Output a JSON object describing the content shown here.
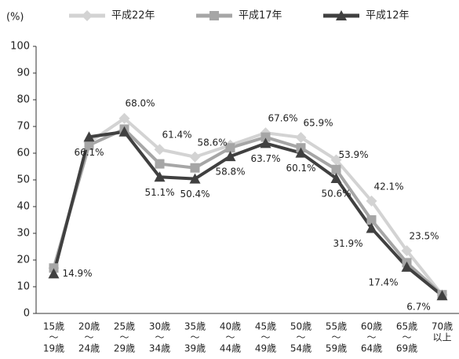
{
  "chart_data": {
    "type": "line",
    "y_label": "(%)",
    "categories": [
      [
        "15歳",
        "～",
        "19歳"
      ],
      [
        "20歳",
        "～",
        "24歳"
      ],
      [
        "25歳",
        "～",
        "29歳"
      ],
      [
        "30歳",
        "～",
        "34歳"
      ],
      [
        "35歳",
        "～",
        "39歳"
      ],
      [
        "40歳",
        "～",
        "44歳"
      ],
      [
        "45歳",
        "～",
        "49歳"
      ],
      [
        "50歳",
        "～",
        "54歳"
      ],
      [
        "55歳",
        "～",
        "59歳"
      ],
      [
        "60歳",
        "～",
        "64歳"
      ],
      [
        "65歳",
        "～",
        "69歳"
      ],
      [
        "70歳",
        "以上"
      ]
    ],
    "series": [
      {
        "name": "平成22年",
        "color": "#d3d3d3",
        "marker": "diamond",
        "values": [
          17,
          64,
          73,
          61.4,
          58.6,
          63,
          67.6,
          65.9,
          57.5,
          42.1,
          23.5,
          7
        ],
        "value_labels": [
          null,
          null,
          null,
          "61.4%",
          "58.6%",
          null,
          "67.6%",
          "65.9%",
          null,
          "42.1%",
          "23.5%",
          null
        ]
      },
      {
        "name": "平成17年",
        "color": "#a6a6a6",
        "marker": "square",
        "values": [
          17,
          63,
          69,
          56,
          54.5,
          62,
          66,
          62,
          53.9,
          35,
          19,
          7
        ],
        "value_labels": [
          null,
          null,
          null,
          null,
          null,
          null,
          null,
          null,
          "53.9%",
          null,
          null,
          null
        ]
      },
      {
        "name": "平成12年",
        "color": "#404040",
        "marker": "triangle",
        "values": [
          14.9,
          66.1,
          68.0,
          51.1,
          50.4,
          58.8,
          63.7,
          60.1,
          50.6,
          31.9,
          17.4,
          6.7
        ],
        "value_labels": [
          "14.9%",
          "66.1%",
          "68.0%",
          "51.1%",
          "50.4%",
          "58.8%",
          "63.7%",
          "60.1%",
          "50.6%",
          "31.9%",
          "17.4%",
          "6.7%"
        ]
      }
    ],
    "ylim": [
      0,
      100
    ],
    "yticks": [
      0,
      10,
      20,
      30,
      40,
      50,
      60,
      70,
      80,
      90,
      100
    ],
    "grid": false
  }
}
